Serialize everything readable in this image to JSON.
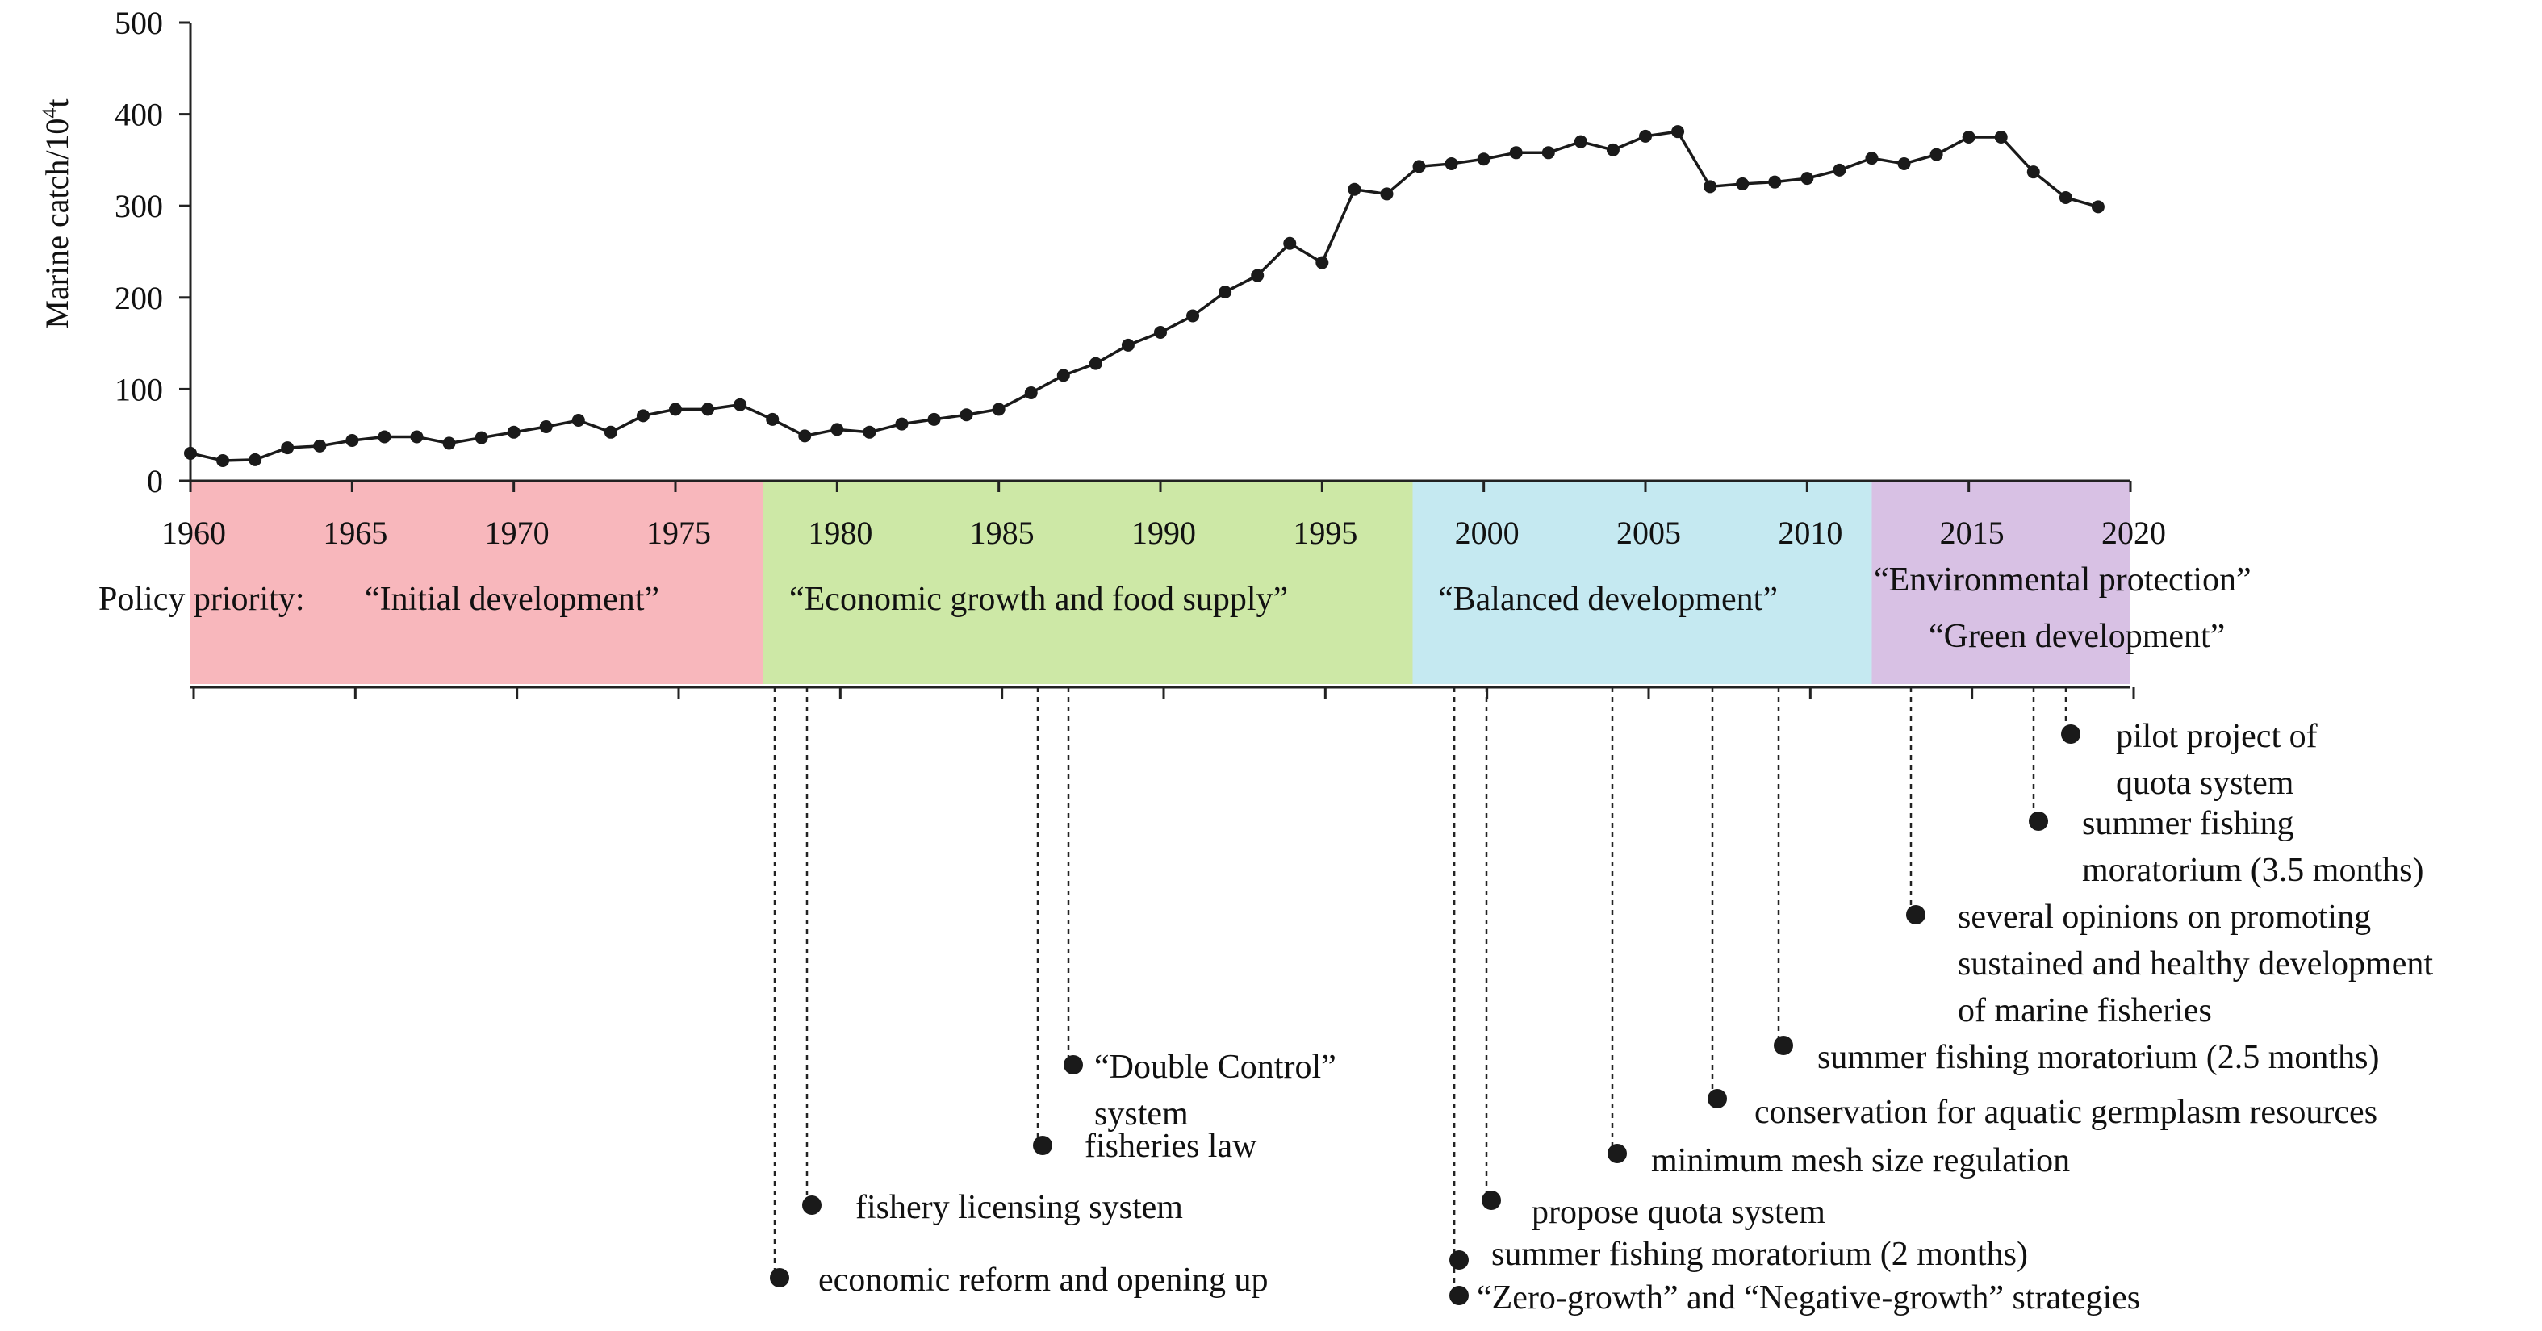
{
  "chart_data": {
    "type": "line",
    "ylabel_main": "Marine catch/10",
    "ylabel_sup": "4",
    "ylabel_unit": "t",
    "ylim": [
      0,
      500
    ],
    "yticks": [
      "0",
      "100",
      "200",
      "300",
      "400",
      "500"
    ],
    "xlim": [
      1960,
      2020
    ],
    "xticks": [
      "1960",
      "1965",
      "1970",
      "1975",
      "1980",
      "1985",
      "1990",
      "1995",
      "2000",
      "2005",
      "2010",
      "2015",
      "2020"
    ],
    "series": [
      {
        "x": [
          1960,
          1961,
          1962,
          1963,
          1964,
          1965,
          1966,
          1967,
          1968,
          1969,
          1970,
          1971,
          1972,
          1973,
          1974,
          1975,
          1976,
          1977,
          1978,
          1979,
          1980,
          1981,
          1982,
          1983,
          1984,
          1985,
          1986,
          1987,
          1988,
          1989,
          1990,
          1991,
          1992,
          1993,
          1994,
          1995,
          1996,
          1997,
          1998,
          1999,
          2000,
          2001,
          2002,
          2003,
          2004,
          2005,
          2006,
          2007,
          2008,
          2009,
          2010,
          2011,
          2012,
          2013,
          2014,
          2015,
          2016,
          2017,
          2018,
          2019
        ],
        "values": [
          30,
          22,
          23,
          36,
          38,
          44,
          48,
          48,
          41,
          47,
          53,
          59,
          66,
          53,
          71,
          78,
          78,
          83,
          67,
          49,
          56,
          53,
          62,
          67,
          72,
          78,
          96,
          115,
          128,
          148,
          162,
          180,
          206,
          224,
          259,
          238,
          318,
          313,
          343,
          346,
          351,
          358,
          358,
          370,
          361,
          376,
          381,
          321,
          324,
          326,
          330,
          339,
          352,
          346,
          356,
          375,
          375,
          337,
          309,
          299
        ]
      }
    ],
    "periods": [
      {
        "start": 1960,
        "end": 1977.7,
        "color": "#f8b7bc",
        "labels": [
          "“Initial development”"
        ]
      },
      {
        "start": 1977.7,
        "end": 1997.8,
        "color": "#cde8a6",
        "labels": [
          "“Economic growth and food supply”"
        ]
      },
      {
        "start": 1997.8,
        "end": 2012,
        "color": "#c5e9f1",
        "labels": [
          "“Balanced development”"
        ]
      },
      {
        "start": 2012,
        "end": 2020,
        "color": "#d8c1e4",
        "labels": [
          "“Environmental protection”",
          "“Green development”"
        ]
      }
    ],
    "policy_label": "Policy priority:",
    "events": [
      {
        "year": 1978,
        "lines": [
          "economic reform and opening up"
        ]
      },
      {
        "year": 1979,
        "lines": [
          "fishery licensing system"
        ]
      },
      {
        "year": 1986,
        "lines": [
          "fisheries law"
        ]
      },
      {
        "year": 1987,
        "lines": [
          "“Double Control”",
          "system"
        ]
      },
      {
        "year": 1999,
        "lines": [
          "“Zero-growth” and “Negative-growth” strategies"
        ]
      },
      {
        "year": 1999,
        "lines": [
          "summer fishing  moratorium (2 months)"
        ]
      },
      {
        "year": 2000,
        "lines": [
          "propose quota system"
        ]
      },
      {
        "year": 2004,
        "lines": [
          "minimum mesh size regulation"
        ]
      },
      {
        "year": 2007,
        "lines": [
          "conservation for aquatic germplasm resources"
        ]
      },
      {
        "year": 2009,
        "lines": [
          "summer fishing moratorium (2.5 months)"
        ]
      },
      {
        "year": 2013,
        "lines": [
          "several opinions on promoting",
          "sustained and healthy development",
          "of marine fisheries"
        ]
      },
      {
        "year": 2017,
        "lines": [
          "summer fishing",
          "moratorium (3.5 months)"
        ]
      },
      {
        "year": 2018,
        "lines": [
          "pilot project of",
          "quota system"
        ]
      }
    ]
  }
}
